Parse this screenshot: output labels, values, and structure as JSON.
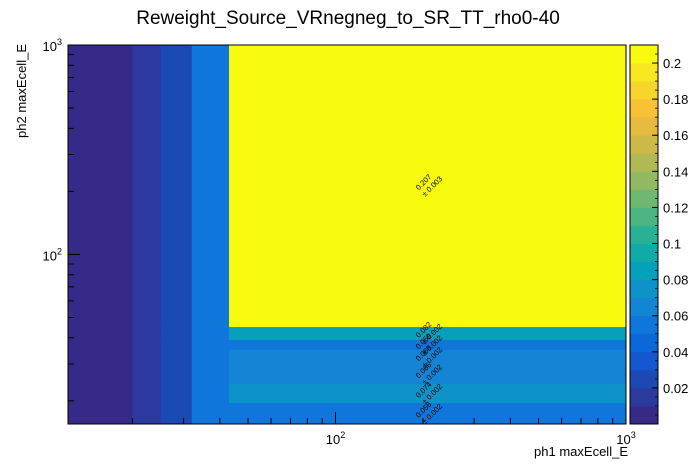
{
  "chart_data": {
    "type": "heatmap",
    "title": "Reweight_Source_VRnegneg_to_SR_TT_rho0-40",
    "xlabel": "ph1 maxEcell_E",
    "ylabel": "ph2 maxEcell_E",
    "x_scale": "log",
    "y_scale": "log",
    "x_tick_labels": [
      {
        "value": 100,
        "base": "10",
        "exp": "2"
      },
      {
        "value": 1000,
        "base": "10",
        "exp": "3"
      }
    ],
    "y_tick_labels": [
      {
        "value": 100,
        "base": "10",
        "exp": "2"
      },
      {
        "value": 1000,
        "base": "10",
        "exp": "3"
      }
    ],
    "x_edges": [
      12,
      20,
      25,
      32,
      43,
      1000
    ],
    "y_edges": [
      15.5,
      19.5,
      24,
      30,
      35,
      39,
      45,
      1000
    ],
    "colorbar": {
      "min": 0,
      "max": 0.21,
      "ticks": [
        "0.02",
        "0.04",
        "0.06",
        "0.08",
        "0.1",
        "0.12",
        "0.14",
        "0.16",
        "0.18",
        "0.2"
      ]
    },
    "cells": [
      {
        "xi": 0,
        "yi": 6,
        "value": 0.003
      },
      {
        "xi": 1,
        "yi": 6,
        "value": 0.018
      },
      {
        "xi": 2,
        "yi": 6,
        "value": 0.024
      },
      {
        "xi": 3,
        "yi": 6,
        "value": 0.059
      },
      {
        "xi": 4,
        "yi": 6,
        "value": 0.207,
        "label": "0.207",
        "err": "± 0.003"
      },
      {
        "xi": 0,
        "yi": 5,
        "value": 0.001
      },
      {
        "xi": 1,
        "yi": 5,
        "value": 0.012
      },
      {
        "xi": 2,
        "yi": 5,
        "value": 0.025
      },
      {
        "xi": 3,
        "yi": 5,
        "value": 0.05
      },
      {
        "xi": 4,
        "yi": 5,
        "value": 0.082,
        "label": "0.082",
        "err": "± 0.002"
      },
      {
        "xi": 0,
        "yi": 4,
        "value": 0.002
      },
      {
        "xi": 1,
        "yi": 4,
        "value": 0.012
      },
      {
        "xi": 2,
        "yi": 4,
        "value": 0.025
      },
      {
        "xi": 3,
        "yi": 4,
        "value": 0.05
      },
      {
        "xi": 4,
        "yi": 4,
        "value": 0.059,
        "label": "0.059",
        "err": "± 0.002"
      },
      {
        "xi": 0,
        "yi": 3,
        "value": 0.002
      },
      {
        "xi": 1,
        "yi": 3,
        "value": 0.012
      },
      {
        "xi": 2,
        "yi": 3,
        "value": 0.025
      },
      {
        "xi": 3,
        "yi": 3,
        "value": 0.05
      },
      {
        "xi": 4,
        "yi": 3,
        "value": 0.068,
        "label": "0.068",
        "err": "± 0.002"
      },
      {
        "xi": 0,
        "yi": 2,
        "value": 0.002
      },
      {
        "xi": 1,
        "yi": 2,
        "value": 0.012
      },
      {
        "xi": 2,
        "yi": 2,
        "value": 0.025
      },
      {
        "xi": 3,
        "yi": 2,
        "value": 0.05
      },
      {
        "xi": 4,
        "yi": 2,
        "value": 0.066,
        "label": "0.066",
        "err": "± 0.002"
      },
      {
        "xi": 0,
        "yi": 1,
        "value": 0.002
      },
      {
        "xi": 1,
        "yi": 1,
        "value": 0.012
      },
      {
        "xi": 2,
        "yi": 1,
        "value": 0.025
      },
      {
        "xi": 3,
        "yi": 1,
        "value": 0.05
      },
      {
        "xi": 4,
        "yi": 1,
        "value": 0.074,
        "label": "0.074",
        "err": "± 0.002"
      },
      {
        "xi": 0,
        "yi": 0,
        "value": 0.002
      },
      {
        "xi": 1,
        "yi": 0,
        "value": 0.012
      },
      {
        "xi": 2,
        "yi": 0,
        "value": 0.025
      },
      {
        "xi": 3,
        "yi": 0,
        "value": 0.05
      },
      {
        "xi": 4,
        "yi": 0,
        "value": 0.056,
        "label": "0.056",
        "err": "± 0.002"
      }
    ]
  }
}
